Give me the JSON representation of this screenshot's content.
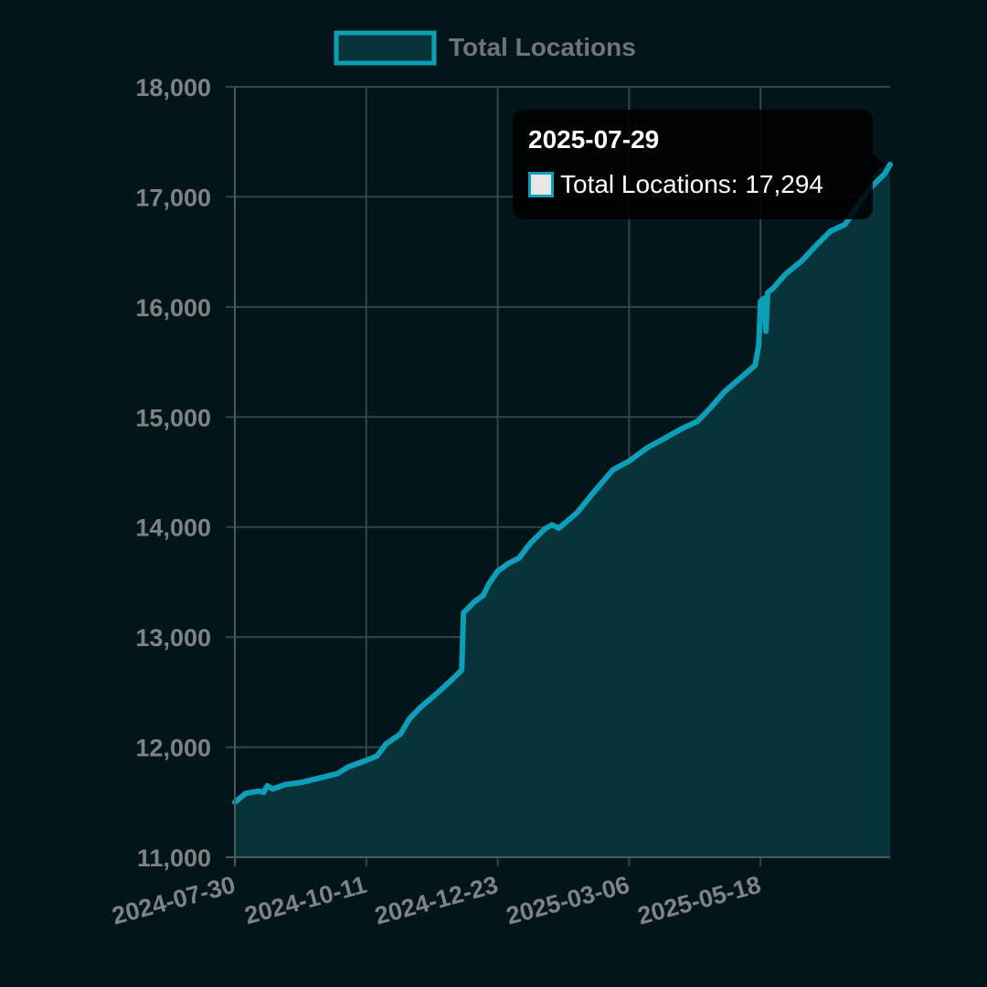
{
  "chart_data": {
    "type": "area",
    "title": "",
    "xlabel": "",
    "ylabel": "",
    "legend": {
      "position": "top",
      "entries": [
        "Total Locations"
      ]
    },
    "grid": true,
    "ylim": [
      11000,
      18000
    ],
    "yticks": [
      "11,000",
      "12,000",
      "13,000",
      "14,000",
      "15,000",
      "16,000",
      "17,000",
      "18,000"
    ],
    "xlim": [
      "2024-07-30",
      "2025-07-29"
    ],
    "xticks": [
      "2024-07-30",
      "2024-10-11",
      "2024-12-23",
      "2025-03-06",
      "2025-05-18"
    ],
    "series": [
      {
        "name": "Total Locations",
        "color": "#0e9fb8",
        "fill": "#07343b",
        "points": [
          [
            "2024-07-30",
            11500
          ],
          [
            "2024-08-05",
            11580
          ],
          [
            "2024-08-12",
            11600
          ],
          [
            "2024-08-15",
            11590
          ],
          [
            "2024-08-17",
            11650
          ],
          [
            "2024-08-20",
            11620
          ],
          [
            "2024-08-27",
            11660
          ],
          [
            "2024-09-05",
            11680
          ],
          [
            "2024-09-15",
            11720
          ],
          [
            "2024-09-25",
            11760
          ],
          [
            "2024-10-01",
            11820
          ],
          [
            "2024-10-11",
            11880
          ],
          [
            "2024-10-17",
            11920
          ],
          [
            "2024-10-22",
            12030
          ],
          [
            "2024-10-30",
            12120
          ],
          [
            "2024-11-04",
            12260
          ],
          [
            "2024-11-10",
            12360
          ],
          [
            "2024-11-20",
            12500
          ],
          [
            "2024-11-28",
            12620
          ],
          [
            "2024-12-03",
            12700
          ],
          [
            "2024-12-04",
            13220
          ],
          [
            "2024-12-10",
            13320
          ],
          [
            "2024-12-15",
            13380
          ],
          [
            "2024-12-18",
            13480
          ],
          [
            "2024-12-23",
            13600
          ],
          [
            "2024-12-29",
            13670
          ],
          [
            "2025-01-04",
            13720
          ],
          [
            "2025-01-10",
            13850
          ],
          [
            "2025-01-18",
            13980
          ],
          [
            "2025-01-22",
            14020
          ],
          [
            "2025-01-26",
            13990
          ],
          [
            "2025-02-05",
            14130
          ],
          [
            "2025-02-15",
            14330
          ],
          [
            "2025-02-25",
            14520
          ],
          [
            "2025-03-06",
            14600
          ],
          [
            "2025-03-16",
            14720
          ],
          [
            "2025-03-25",
            14800
          ],
          [
            "2025-04-05",
            14900
          ],
          [
            "2025-04-13",
            14960
          ],
          [
            "2025-04-20",
            15080
          ],
          [
            "2025-04-28",
            15230
          ],
          [
            "2025-05-08",
            15370
          ],
          [
            "2025-05-15",
            15470
          ],
          [
            "2025-05-17",
            15650
          ],
          [
            "2025-05-18",
            16050
          ],
          [
            "2025-05-20",
            16080
          ],
          [
            "2025-05-21",
            15780
          ],
          [
            "2025-05-22",
            16130
          ],
          [
            "2025-05-25",
            16170
          ],
          [
            "2025-06-01",
            16300
          ],
          [
            "2025-06-10",
            16420
          ],
          [
            "2025-06-18",
            16560
          ],
          [
            "2025-06-26",
            16690
          ],
          [
            "2025-07-04",
            16750
          ],
          [
            "2025-07-10",
            16900
          ],
          [
            "2025-07-18",
            17080
          ],
          [
            "2025-07-26",
            17210
          ],
          [
            "2025-07-29",
            17294
          ]
        ]
      }
    ],
    "tooltip": {
      "date": "2025-07-29",
      "label": "Total Locations: 17,294"
    }
  }
}
